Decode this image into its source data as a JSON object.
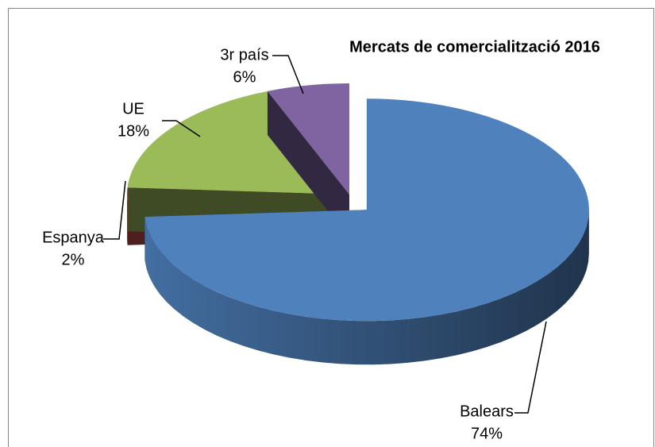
{
  "chart_data": {
    "type": "pie",
    "title": "Mercats de comercialització 2016",
    "categories": [
      "Balears",
      "Espanya",
      "UE",
      "3r país"
    ],
    "values": [
      74,
      2,
      18,
      6
    ],
    "value_labels": [
      "74%",
      "2%",
      "18%",
      "6%"
    ],
    "colors": [
      "#4f81bd",
      "#c0504d",
      "#9bbb59",
      "#8064a2"
    ],
    "explode": [
      "Balears"
    ]
  }
}
